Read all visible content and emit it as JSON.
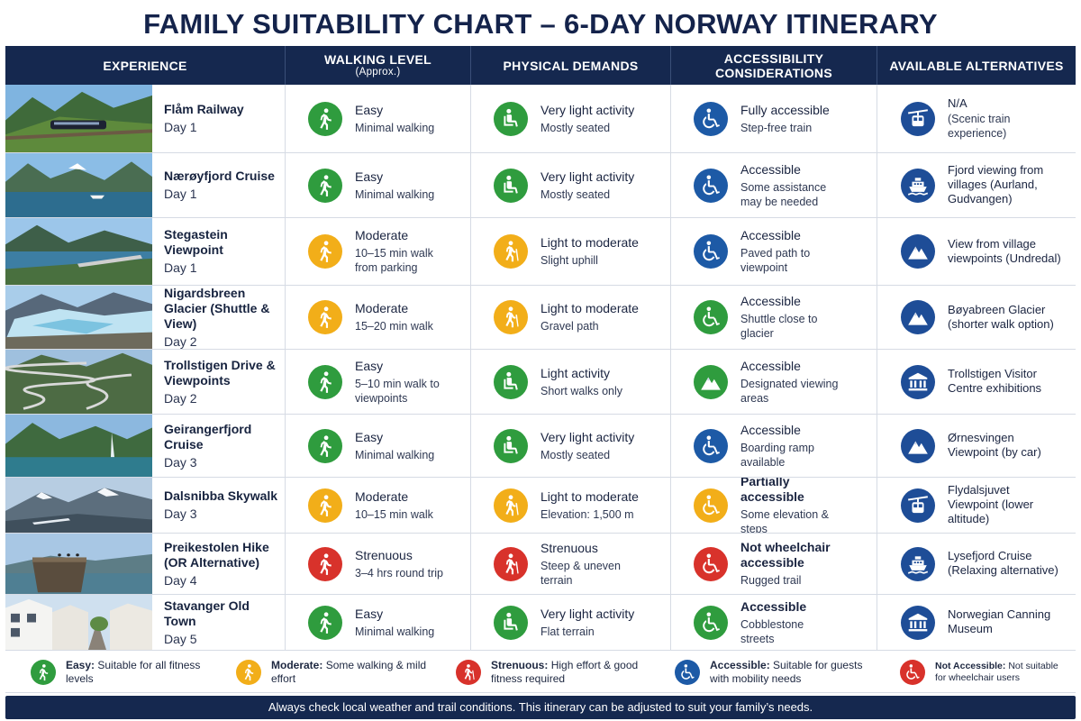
{
  "title": "FAMILY SUITABILITY CHART – 6-DAY NORWAY ITINERARY",
  "headers": {
    "experience": "EXPERIENCE",
    "walking": "WALKING LEVEL",
    "walking_sub": "(Approx.)",
    "physical": "PHYSICAL DEMANDS",
    "accessibility": "ACCESSIBILITY CONSIDERATIONS",
    "alternatives": "AVAILABLE ALTERNATIVES"
  },
  "colors": {
    "navy": "#15284f",
    "green": "#2f9c3e",
    "yellow": "#f2ae19",
    "red": "#d8322b",
    "blue": "#1d5aa6"
  },
  "rows": [
    {
      "name": "Flåm Railway",
      "day": "Day 1",
      "walk_icon": "walking-person-icon",
      "walk_color": "green",
      "walk": "Easy",
      "walk_sub": "Minimal walking",
      "phys_icon": "seated-person-icon",
      "phys_color": "green",
      "phys": "Very light activity",
      "phys_sub": "Mostly seated",
      "acc_icon": "wheelchair-icon",
      "acc_color": "blue",
      "acc": "Fully accessible",
      "acc_sub": "Step-free train",
      "alt_icon": "cable-car-icon",
      "alt": "N/A",
      "alt_sub": "(Scenic train experience)"
    },
    {
      "name": "Nærøyfjord Cruise",
      "day": "Day 1",
      "walk_icon": "walking-person-icon",
      "walk_color": "green",
      "walk": "Easy",
      "walk_sub": "Minimal walking",
      "phys_icon": "seated-person-icon",
      "phys_color": "green",
      "phys": "Very light activity",
      "phys_sub": "Mostly seated",
      "acc_icon": "wheelchair-icon",
      "acc_color": "blue",
      "acc": "Accessible",
      "acc_sub": "Some assistance may be needed",
      "alt_icon": "ship-icon",
      "alt": "Fjord viewing from villages (Aurland, Gudvangen)",
      "alt_sub": ""
    },
    {
      "name": "Stegastein Viewpoint",
      "day": "Day 1",
      "walk_icon": "walking-person-icon",
      "walk_color": "yellow",
      "walk": "Moderate",
      "walk_sub": "10–15 min walk from parking",
      "phys_icon": "hiking-person-icon",
      "phys_color": "yellow",
      "phys": "Light to moderate",
      "phys_sub": "Slight uphill",
      "acc_icon": "wheelchair-icon",
      "acc_color": "blue",
      "acc": "Accessible",
      "acc_sub": "Paved path to viewpoint",
      "alt_icon": "mountain-icon",
      "alt": "View from village viewpoints (Undredal)",
      "alt_sub": ""
    },
    {
      "name": "Nigardsbreen Glacier (Shuttle & View)",
      "day": "Day 2",
      "walk_icon": "walking-person-icon",
      "walk_color": "yellow",
      "walk": "Moderate",
      "walk_sub": "15–20 min walk",
      "phys_icon": "hiking-person-icon",
      "phys_color": "yellow",
      "phys": "Light to moderate",
      "phys_sub": "Gravel path",
      "acc_icon": "wheelchair-icon",
      "acc_color": "green",
      "acc": "Accessible",
      "acc_sub": "Shuttle close to glacier",
      "alt_icon": "mountain-icon",
      "alt": "Bøyabreen Glacier (shorter walk option)",
      "alt_sub": ""
    },
    {
      "name": "Trollstigen Drive & Viewpoints",
      "day": "Day 2",
      "walk_icon": "walking-person-icon",
      "walk_color": "green",
      "walk": "Easy",
      "walk_sub": "5–10 min walk to viewpoints",
      "phys_icon": "seated-person-icon",
      "phys_color": "green",
      "phys": "Light activity",
      "phys_sub": "Short walks only",
      "acc_icon": "mountain-icon",
      "acc_color": "green",
      "acc": "Accessible",
      "acc_sub": "Designated viewing areas",
      "alt_icon": "museum-icon",
      "alt": "Trollstigen Visitor Centre exhibitions",
      "alt_sub": ""
    },
    {
      "name": "Geirangerfjord Cruise",
      "day": "Day 3",
      "walk_icon": "walking-person-icon",
      "walk_color": "green",
      "walk": "Easy",
      "walk_sub": "Minimal walking",
      "phys_icon": "seated-person-icon",
      "phys_color": "green",
      "phys": "Very light activity",
      "phys_sub": "Mostly seated",
      "acc_icon": "wheelchair-icon",
      "acc_color": "blue",
      "acc": "Accessible",
      "acc_sub": "Boarding ramp available",
      "alt_icon": "mountain-icon",
      "alt": "Ørnesvingen Viewpoint (by car)",
      "alt_sub": ""
    },
    {
      "name": "Dalsnibba Skywalk",
      "day": "Day 3",
      "walk_icon": "walking-person-icon",
      "walk_color": "yellow",
      "walk": "Moderate",
      "walk_sub": "10–15 min walk",
      "phys_icon": "hiking-person-icon",
      "phys_color": "yellow",
      "phys": "Light to moderate",
      "phys_sub": "Elevation: 1,500 m",
      "acc_icon": "wheelchair-icon",
      "acc_color": "yellow",
      "acc": "Partially accessible",
      "acc_sub": "Some elevation & steps",
      "alt_icon": "cable-car-icon",
      "alt": "Flydalsjuvet Viewpoint (lower altitude)",
      "alt_sub": ""
    },
    {
      "name": "Preikestolen Hike (OR Alternative)",
      "day": "Day 4",
      "walk_icon": "walking-person-icon",
      "walk_color": "red",
      "walk": "Strenuous",
      "walk_sub": "3–4 hrs round trip",
      "phys_icon": "hiking-person-icon",
      "phys_color": "red",
      "phys": "Strenuous",
      "phys_sub": "Steep & uneven terrain",
      "acc_icon": "wheelchair-icon",
      "acc_color": "red",
      "acc": "Not wheelchair accessible",
      "acc_sub": "Rugged trail",
      "alt_icon": "ship-icon",
      "alt": "Lysefjord Cruise (Relaxing alternative)",
      "alt_sub": ""
    },
    {
      "name": "Stavanger Old Town",
      "day": "Day 5",
      "walk_icon": "walking-person-icon",
      "walk_color": "green",
      "walk": "Easy",
      "walk_sub": "Minimal walking",
      "phys_icon": "seated-person-icon",
      "phys_color": "green",
      "phys": "Very light activity",
      "phys_sub": "Flat terrain",
      "acc_icon": "wheelchair-icon",
      "acc_color": "green",
      "acc": "Accessible",
      "acc_sub": "Cobblestone streets",
      "alt_icon": "museum-icon",
      "alt": "Norwegian Canning Museum",
      "alt_sub": ""
    }
  ],
  "legend": [
    {
      "icon": "walking-person-icon",
      "color": "green",
      "label": "Easy:",
      "text": "Suitable for all fitness levels"
    },
    {
      "icon": "walking-person-icon",
      "color": "yellow",
      "label": "Moderate:",
      "text": "Some walking & mild effort"
    },
    {
      "icon": "hiking-person-icon",
      "color": "red",
      "label": "Strenuous:",
      "text": "High effort & good fitness required"
    },
    {
      "icon": "wheelchair-icon",
      "color": "blue",
      "label": "Accessible:",
      "text": "Suitable for guests with mobility needs"
    },
    {
      "icon": "wheelchair-icon",
      "color": "red",
      "label": "Not Accessible:",
      "text": "Not suitable for wheelchair users"
    }
  ],
  "footer": "Always check local weather and trail conditions. This itinerary can be adjusted to suit your family’s needs."
}
